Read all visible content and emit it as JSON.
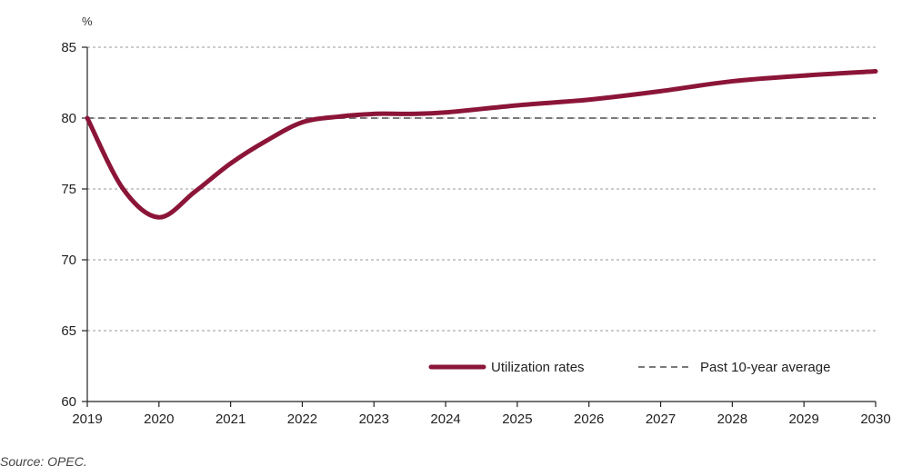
{
  "chart_data": {
    "type": "line",
    "ylabel": "%",
    "xlim": [
      2019,
      2030
    ],
    "ylim": [
      60,
      85
    ],
    "x_ticks": [
      "2019",
      "2020",
      "2021",
      "2022",
      "2023",
      "2024",
      "2025",
      "2026",
      "2027",
      "2028",
      "2029",
      "2030"
    ],
    "y_ticks": [
      "60",
      "65",
      "70",
      "75",
      "80",
      "85"
    ],
    "grid": "horizontal dashed",
    "legend_position": "bottom-right",
    "series": [
      {
        "name": "Utilization rates",
        "color": "#8b1538",
        "style": "solid",
        "x": [
          2019.0,
          2019.5,
          2020.0,
          2020.5,
          2021.0,
          2021.5,
          2022.0,
          2022.5,
          2023.0,
          2023.5,
          2024.0,
          2025.0,
          2026.0,
          2027.0,
          2028.0,
          2029.0,
          2030.0
        ],
        "y": [
          80.0,
          75.0,
          73.0,
          74.8,
          76.8,
          78.4,
          79.7,
          80.1,
          80.3,
          80.3,
          80.4,
          80.9,
          81.3,
          81.9,
          82.6,
          83.0,
          83.3
        ]
      },
      {
        "name": "Past 10-year average",
        "color": "#7a7a7a",
        "style": "dashed",
        "x": [
          2019,
          2030
        ],
        "y": [
          80,
          80
        ]
      }
    ]
  },
  "source": "Source: OPEC."
}
